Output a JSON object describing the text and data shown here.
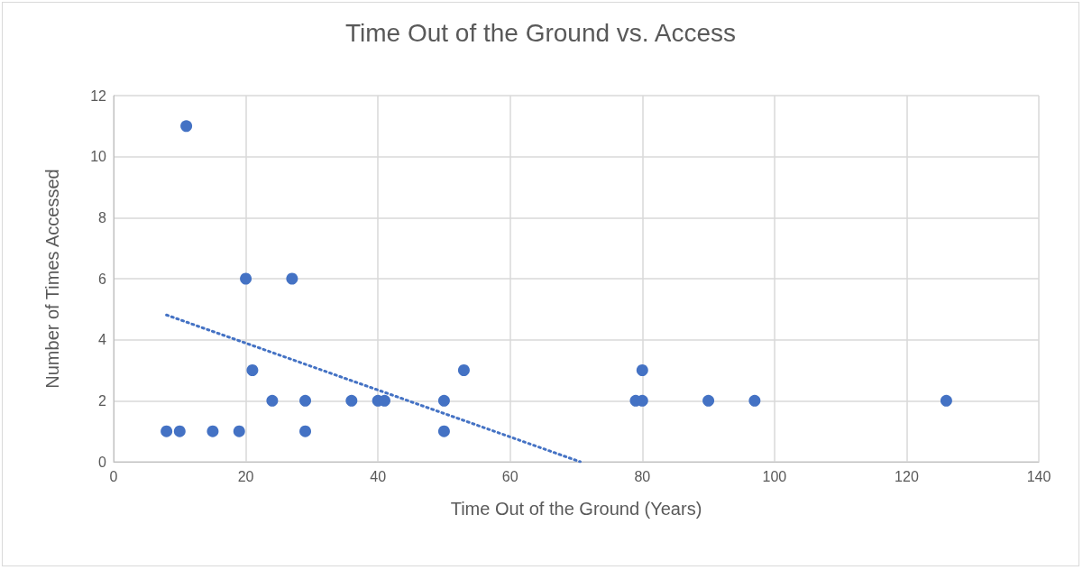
{
  "chart_data": {
    "type": "scatter",
    "title": "Time Out of the Ground vs. Access",
    "xlabel": "Time Out of the Ground (Years)",
    "ylabel": "Number of Times Accessed",
    "series": [
      {
        "color": "#4472c4",
        "x": [
          8,
          10,
          11,
          15,
          19,
          20,
          21,
          24,
          27,
          29,
          29,
          36,
          40,
          41,
          50,
          50,
          53,
          79,
          80,
          80,
          90,
          97,
          126
        ],
        "values": [
          1,
          1,
          11,
          1,
          1,
          6,
          3,
          2,
          6,
          2,
          1,
          2,
          2,
          2,
          2,
          1,
          3,
          2,
          2,
          3,
          2,
          2,
          2
        ],
        "marker": "circle"
      },
      {
        "type": "line",
        "color": "#4472c4",
        "x": [
          8,
          70.6
        ],
        "values": [
          4.81,
          0
        ],
        "line_style": "dotted",
        "marker": "none"
      }
    ],
    "xlim": [
      0,
      140
    ],
    "xticks": [
      0,
      20,
      40,
      60,
      80,
      100,
      120,
      140
    ],
    "ylim": [
      0,
      12
    ],
    "yticks": [
      0,
      2,
      4,
      6,
      8,
      10,
      12
    ],
    "grid": true
  }
}
